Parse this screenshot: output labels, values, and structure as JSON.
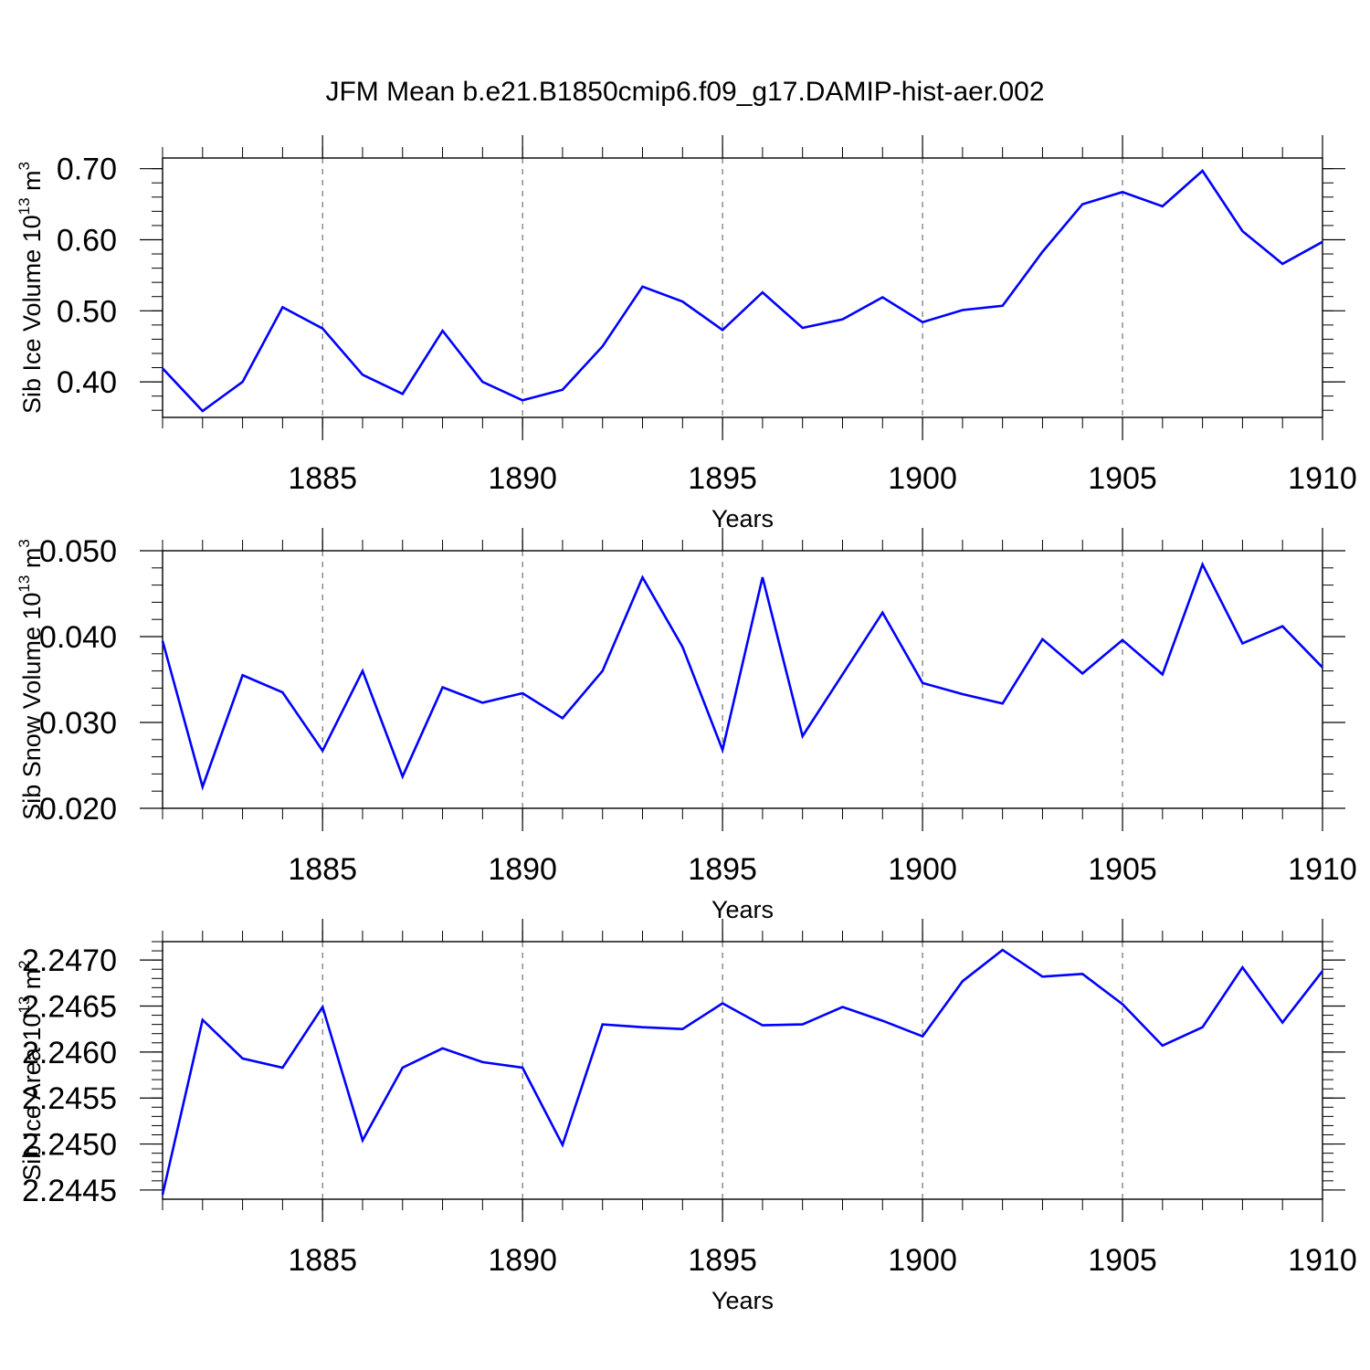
{
  "title": "JFM Mean b.e21.B1850cmip6.f09_g17.DAMIP-hist-aer.002",
  "series_color": "#0000ff",
  "chart_data": [
    {
      "type": "line",
      "ylabel_main": "Sib Ice Volume 10",
      "ylabel_exp": "13",
      "ylabel_unit": " m",
      "ylabel_unit_exp": "3",
      "xlabel": "Years",
      "xlim": [
        1881,
        1910
      ],
      "ylim": [
        0.35,
        0.715
      ],
      "xticks": [
        1885,
        1890,
        1895,
        1900,
        1905,
        1910
      ],
      "yticks": [
        0.4,
        0.5,
        0.6,
        0.7
      ],
      "ytick_labels": [
        "0.40",
        "0.50",
        "0.60",
        "0.70"
      ],
      "x": [
        1881,
        1882,
        1883,
        1884,
        1885,
        1886,
        1887,
        1888,
        1889,
        1890,
        1891,
        1892,
        1893,
        1894,
        1895,
        1896,
        1897,
        1898,
        1899,
        1900,
        1901,
        1902,
        1903,
        1904,
        1905,
        1906,
        1907,
        1908,
        1909,
        1910
      ],
      "values": [
        0.419,
        0.359,
        0.4,
        0.505,
        0.475,
        0.41,
        0.383,
        0.472,
        0.4,
        0.374,
        0.389,
        0.45,
        0.534,
        0.513,
        0.473,
        0.526,
        0.476,
        0.488,
        0.519,
        0.484,
        0.501,
        0.507,
        0.583,
        0.65,
        0.667,
        0.647,
        0.697,
        0.612,
        0.566,
        0.597
      ]
    },
    {
      "type": "line",
      "ylabel_main": "Sib Snow Volume 10",
      "ylabel_exp": "13",
      "ylabel_unit": " m",
      "ylabel_unit_exp": "3",
      "xlabel": "Years",
      "xlim": [
        1881,
        1910
      ],
      "ylim": [
        0.02,
        0.05
      ],
      "xticks": [
        1885,
        1890,
        1895,
        1900,
        1905,
        1910
      ],
      "yticks": [
        0.02,
        0.03,
        0.04,
        0.05
      ],
      "ytick_labels": [
        "0.020",
        "0.030",
        "0.040",
        "0.050"
      ],
      "x": [
        1881,
        1882,
        1883,
        1884,
        1885,
        1886,
        1887,
        1888,
        1889,
        1890,
        1891,
        1892,
        1893,
        1894,
        1895,
        1896,
        1897,
        1898,
        1899,
        1900,
        1901,
        1902,
        1903,
        1904,
        1905,
        1906,
        1907,
        1908,
        1909,
        1910
      ],
      "values": [
        0.0395,
        0.0225,
        0.0355,
        0.0335,
        0.0267,
        0.036,
        0.0237,
        0.0341,
        0.0323,
        0.0334,
        0.0305,
        0.036,
        0.0469,
        0.0388,
        0.0268,
        0.0469,
        0.0284,
        0.0356,
        0.0428,
        0.0346,
        0.0333,
        0.0322,
        0.0397,
        0.0357,
        0.0396,
        0.0356,
        0.0484,
        0.0392,
        0.0412,
        0.0364
      ]
    },
    {
      "type": "line",
      "ylabel_main": "Sib Ice Area 10",
      "ylabel_exp": "13",
      "ylabel_unit": " m",
      "ylabel_unit_exp": "2",
      "xlabel": "Years",
      "xlim": [
        1881,
        1910
      ],
      "ylim": [
        2.2444,
        2.2472
      ],
      "xticks": [
        1885,
        1890,
        1895,
        1900,
        1905,
        1910
      ],
      "yticks": [
        2.2445,
        2.245,
        2.2455,
        2.246,
        2.2465,
        2.247
      ],
      "ytick_labels": [
        "2.2445",
        "2.2450",
        "2.2455",
        "2.2460",
        "2.2465",
        "2.2470"
      ],
      "x": [
        1881,
        1882,
        1883,
        1884,
        1885,
        1886,
        1887,
        1888,
        1889,
        1890,
        1891,
        1892,
        1893,
        1894,
        1895,
        1896,
        1897,
        1898,
        1899,
        1900,
        1901,
        1902,
        1903,
        1904,
        1905,
        1906,
        1907,
        1908,
        1909,
        1910
      ],
      "values": [
        2.24445,
        2.24635,
        2.24593,
        2.24583,
        2.24649,
        2.24504,
        2.24583,
        2.24604,
        2.24589,
        2.24583,
        2.24499,
        2.2463,
        2.24627,
        2.24625,
        2.24653,
        2.24629,
        2.2463,
        2.24649,
        2.24634,
        2.24617,
        2.24677,
        2.24711,
        2.24682,
        2.24685,
        2.24652,
        2.24607,
        2.24627,
        2.24692,
        2.24632,
        2.24688
      ]
    }
  ]
}
